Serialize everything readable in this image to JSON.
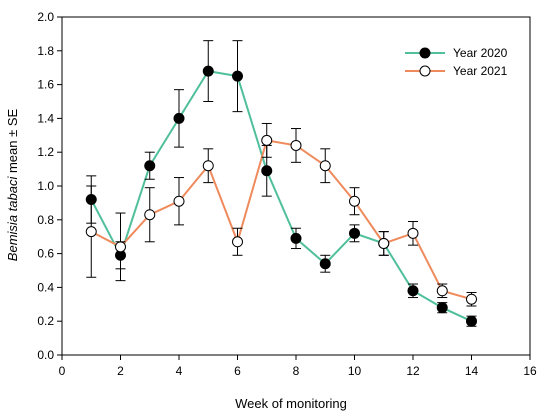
{
  "chart_data": {
    "type": "line",
    "xlabel": "Week of monitoring",
    "ylabel_italic": "Bemisia tabaci",
    "ylabel_rest": " mean ± SE",
    "xlim": [
      0,
      16
    ],
    "ylim": [
      0,
      2.0
    ],
    "x_ticks": [
      "0",
      "2",
      "4",
      "6",
      "8",
      "10",
      "12",
      "14",
      "16"
    ],
    "y_ticks": [
      "0.0",
      "0.2",
      "0.4",
      "0.6",
      "0.8",
      "1.0",
      "1.2",
      "1.4",
      "1.6",
      "1.8",
      "2.0"
    ],
    "grid": false,
    "legend_position": "top-right",
    "series": [
      {
        "name": "Year 2020",
        "color": "#4fbf9c",
        "marker": "filled-circle",
        "x": [
          1,
          2,
          3,
          4,
          5,
          6,
          7,
          8,
          9,
          10,
          11,
          12,
          13,
          14
        ],
        "y": [
          0.92,
          0.59,
          1.12,
          1.4,
          1.68,
          1.65,
          1.09,
          0.69,
          0.54,
          0.72,
          0.66,
          0.38,
          0.28,
          0.2
        ],
        "err": [
          0.14,
          0.08,
          0.08,
          0.17,
          0.18,
          0.21,
          0.15,
          0.06,
          0.05,
          0.05,
          0.07,
          0.04,
          0.03,
          0.03
        ]
      },
      {
        "name": "Year 2021",
        "color": "#ee8a5c",
        "marker": "open-circle",
        "x": [
          1,
          2,
          3,
          4,
          5,
          6,
          7,
          8,
          9,
          10,
          11,
          12,
          13,
          14
        ],
        "y": [
          0.73,
          0.64,
          0.83,
          0.91,
          1.12,
          0.67,
          1.27,
          1.24,
          1.12,
          0.91,
          0.66,
          0.72,
          0.38,
          0.33
        ],
        "err": [
          0.27,
          0.2,
          0.16,
          0.14,
          0.1,
          0.08,
          0.1,
          0.1,
          0.1,
          0.08,
          0.07,
          0.07,
          0.04,
          0.04
        ]
      }
    ]
  }
}
